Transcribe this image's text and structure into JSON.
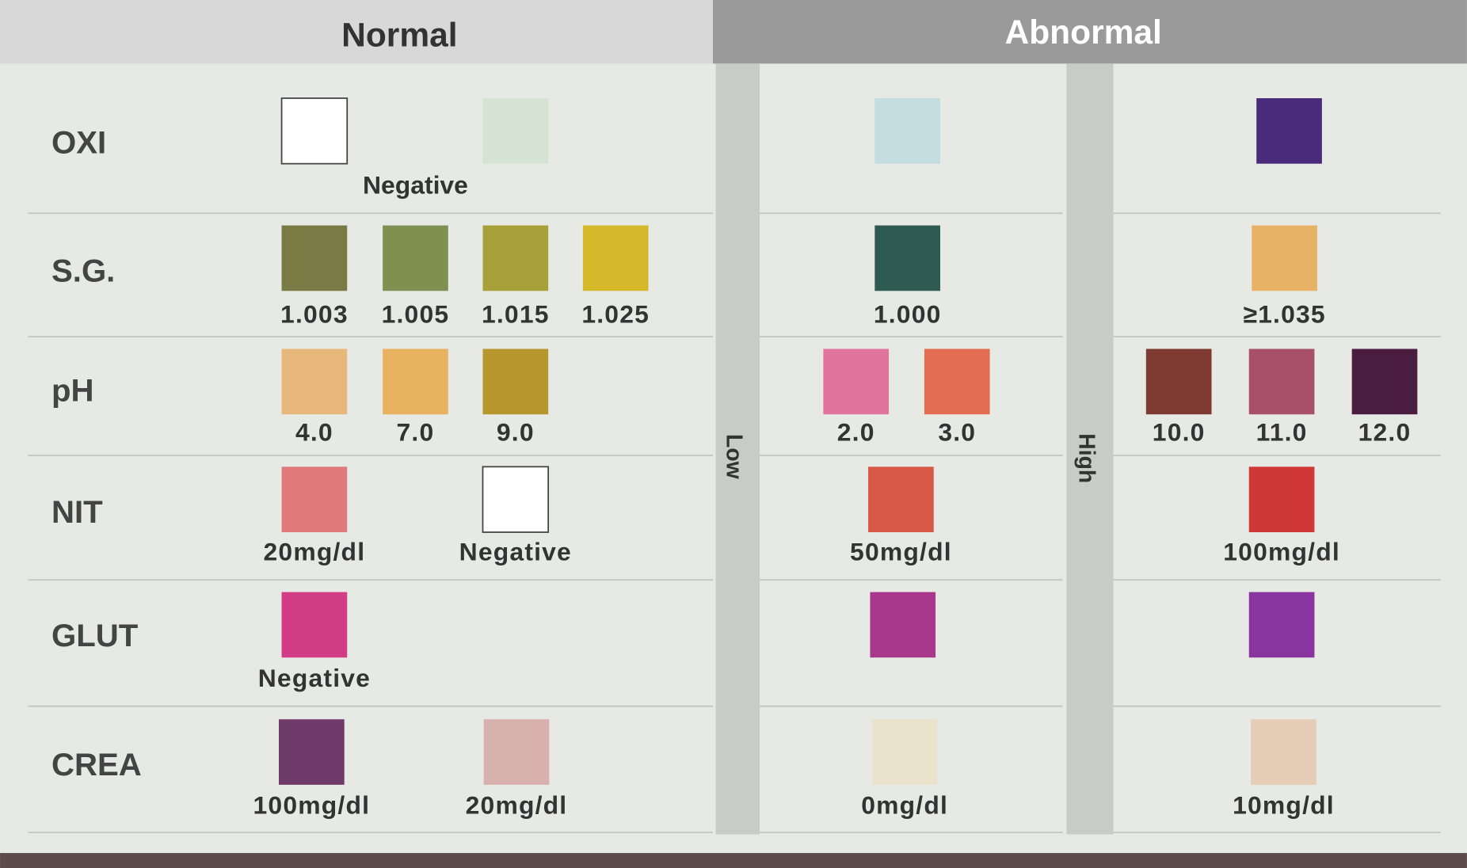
{
  "header": {
    "normal": "Normal",
    "abnormal": "Abnormal"
  },
  "sides": {
    "low": "Low",
    "high": "High"
  },
  "rows": [
    {
      "name": "OXI",
      "normal_caption": "Negative",
      "normal": [
        {
          "color": "#ffffff"
        },
        {
          "color": "#d5e3d3"
        }
      ],
      "low": [
        {
          "color": "#c4dde0"
        }
      ],
      "high": [
        {
          "color": "#4a2a7a"
        }
      ]
    },
    {
      "name": "S.G.",
      "normal": [
        {
          "color": "#7a7a44",
          "label": "1.003"
        },
        {
          "color": "#7f9150",
          "label": "1.005"
        },
        {
          "color": "#a8a038",
          "label": "1.015"
        },
        {
          "color": "#d4b82a",
          "label": "1.025"
        }
      ],
      "low": [
        {
          "color": "#2f5a52",
          "label": "1.000"
        }
      ],
      "high": [
        {
          "color": "#e8b266",
          "label": "≥1.035"
        }
      ]
    },
    {
      "name": "pH",
      "normal": [
        {
          "color": "#e8b87a",
          "label": "4.0"
        },
        {
          "color": "#e8b260",
          "label": "7.0"
        },
        {
          "color": "#b8962e",
          "label": "9.0"
        }
      ],
      "low": [
        {
          "color": "#e0749a",
          "label": "2.0"
        },
        {
          "color": "#e46c50",
          "label": "3.0"
        }
      ],
      "high": [
        {
          "color": "#7e3a30",
          "label": "10.0"
        },
        {
          "color": "#a8506a",
          "label": "11.0"
        },
        {
          "color": "#4a1c40",
          "label": "12.0"
        }
      ]
    },
    {
      "name": "NIT",
      "normal": [
        {
          "color": "#e07a7a",
          "label": "20mg/dl"
        },
        {
          "color": "#ffffff",
          "label": "Negative"
        }
      ],
      "low": [
        {
          "color": "#d85848",
          "label": "50mg/dl"
        }
      ],
      "high": [
        {
          "color": "#d03838",
          "label": "100mg/dl"
        }
      ]
    },
    {
      "name": "GLUT",
      "normal": [
        {
          "color": "#d23c84",
          "label": "Negative"
        }
      ],
      "low": [
        {
          "color": "#a8388c"
        }
      ],
      "high": [
        {
          "color": "#8a34a0"
        }
      ]
    },
    {
      "name": "CREA",
      "normal": [
        {
          "color": "#6e3a6a",
          "label": "100mg/dl"
        },
        {
          "color": "#d8b0ae",
          "label": "20mg/dl"
        }
      ],
      "low": [
        {
          "color": "#ebe2cc",
          "label": "0mg/dl"
        }
      ],
      "high": [
        {
          "color": "#e6cdb8",
          "label": "10mg/dl"
        }
      ]
    }
  ]
}
